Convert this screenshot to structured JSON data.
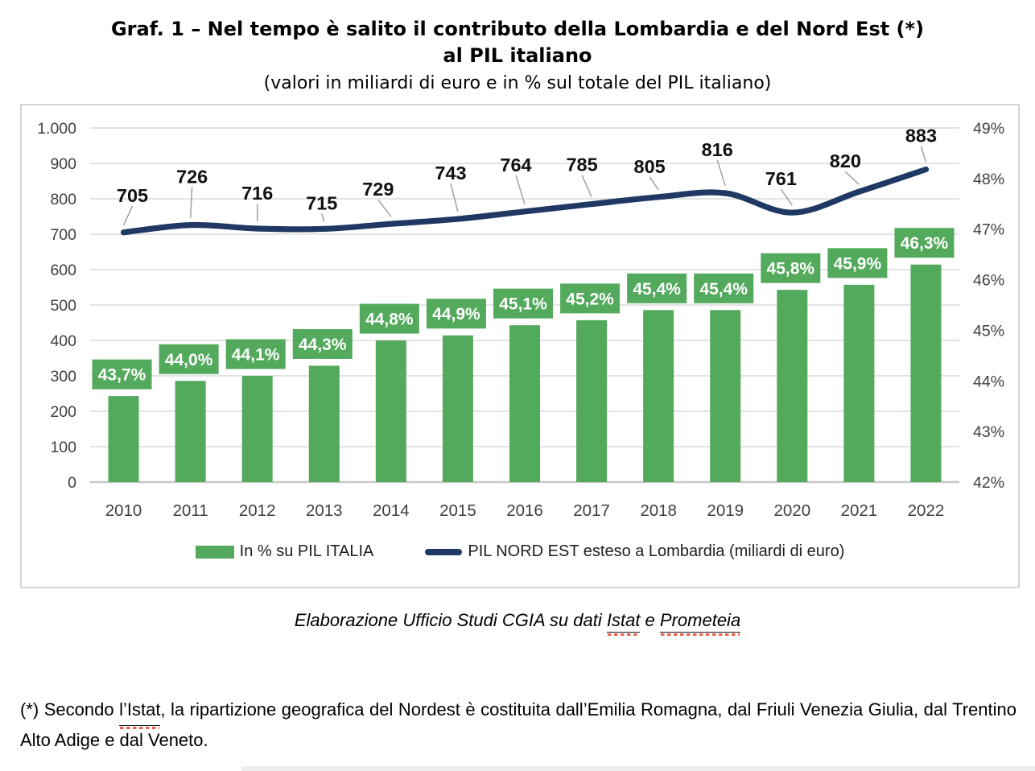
{
  "title": {
    "line1": "Graf. 1 – Nel tempo è salito il contributo della Lombardia e del Nord Est (*)",
    "line2": "al PIL italiano",
    "subtitle": "(valori in miliardi di euro e in % sul totale del PIL italiano)"
  },
  "chart_data": {
    "type": "combo bar+line",
    "categories": [
      "2010",
      "2011",
      "2012",
      "2013",
      "2014",
      "2015",
      "2016",
      "2017",
      "2018",
      "2019",
      "2020",
      "2021",
      "2022"
    ],
    "series": [
      {
        "name": "In % su PIL ITALIA",
        "type": "bar",
        "axis": "right",
        "values": [
          43.7,
          44.0,
          44.1,
          44.3,
          44.8,
          44.9,
          45.1,
          45.2,
          45.4,
          45.4,
          45.8,
          45.9,
          46.3
        ],
        "labels": [
          "43,7%",
          "44,0%",
          "44,1%",
          "44,3%",
          "44,8%",
          "44,9%",
          "45,1%",
          "45,2%",
          "45,4%",
          "45,4%",
          "45,8%",
          "45,9%",
          "46,3%"
        ],
        "color": "#53a95c"
      },
      {
        "name": "PIL NORD EST esteso a Lombardia (miliardi di euro)",
        "type": "line",
        "axis": "left",
        "values": [
          705,
          726,
          716,
          715,
          729,
          743,
          764,
          785,
          805,
          816,
          761,
          820,
          883
        ],
        "labels": [
          "705",
          "726",
          "716",
          "715",
          "729",
          "743",
          "764",
          "785",
          "805",
          "816",
          "761",
          "820",
          "883"
        ],
        "color": "#1f3864"
      }
    ],
    "left_axis": {
      "min": 0,
      "max": 1000,
      "step": 100,
      "tick_labels": [
        "0",
        "100",
        "200",
        "300",
        "400",
        "500",
        "600",
        "700",
        "800",
        "900",
        "1.000"
      ]
    },
    "right_axis": {
      "min": 42,
      "max": 49,
      "step": 1,
      "tick_labels": [
        "42%",
        "43%",
        "44%",
        "45%",
        "46%",
        "47%",
        "48%",
        "49%"
      ]
    },
    "grid": true,
    "legend_position": "bottom",
    "colors": {
      "grid": "#dadada",
      "baseline": "#c8c8c8",
      "leader": "#9b9b9b",
      "axis_text": "#3f3f3f"
    }
  },
  "legend": {
    "items": [
      {
        "label": "In % su PIL ITALIA"
      },
      {
        "label": "PIL NORD EST esteso a Lombardia (miliardi di euro)"
      }
    ]
  },
  "source_line": {
    "prefix": "Elaborazione Ufficio Studi CGIA su dati ",
    "link1": "Istat",
    "middle": " e ",
    "link2": "Prometeia"
  },
  "footnote": {
    "prefix": "(*) Secondo ",
    "istat": "l’Istat",
    "rest": ", la ripartizione geografica del Nordest è costituita dall’Emilia Romagna, dal Friuli Venezia Giulia, dal Trentino Alto Adige e dal Veneto."
  }
}
